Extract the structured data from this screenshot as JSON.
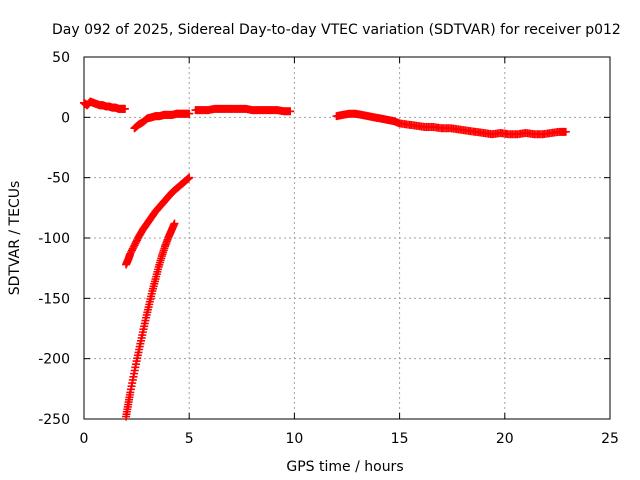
{
  "chart_data": {
    "type": "scatter",
    "title": "Day 092 of 2025, Sidereal Day-to-day VTEC variation (SDTVAR) for receiver p012",
    "xlabel": "GPS time / hours",
    "ylabel": "SDTVAR / TECUs",
    "xlim": [
      0,
      25
    ],
    "ylim": [
      -250,
      50
    ],
    "xticks": [
      0,
      5,
      10,
      15,
      20,
      25
    ],
    "yticks": [
      50,
      0,
      -50,
      -100,
      -150,
      -200,
      -250
    ],
    "grid": true,
    "marker": "plus",
    "color": "#ff0000",
    "series": [
      {
        "name": "arc-1",
        "x": [
          0.0,
          0.15,
          0.3,
          0.45,
          0.6,
          0.75,
          0.9,
          1.05,
          1.2,
          1.35,
          1.5,
          1.65,
          1.8,
          1.95
        ],
        "y": [
          12,
          10,
          13,
          12,
          11,
          10,
          10,
          9,
          9,
          8,
          8,
          7,
          7,
          7
        ]
      },
      {
        "name": "arc-2",
        "x": [
          2.4,
          2.6,
          2.8,
          3.0,
          3.2,
          3.4,
          3.6,
          3.8,
          4.0,
          4.2,
          4.4,
          4.6,
          4.8,
          5.0
        ],
        "y": [
          -9,
          -6,
          -4,
          -1,
          0,
          1,
          1,
          2,
          2,
          2,
          3,
          3,
          3,
          3
        ]
      },
      {
        "name": "arc-3",
        "x": [
          5.3,
          5.6,
          5.9,
          6.2,
          6.5,
          6.8,
          7.1,
          7.4,
          7.7,
          8.0,
          8.3,
          8.6,
          8.9,
          9.2,
          9.5,
          9.8
        ],
        "y": [
          6,
          6,
          6,
          7,
          7,
          7,
          7,
          7,
          7,
          6,
          6,
          6,
          6,
          6,
          5,
          5
        ]
      },
      {
        "name": "arc-4",
        "x": [
          12.0,
          12.3,
          12.6,
          12.9,
          13.2,
          13.5,
          13.8,
          14.1,
          14.4,
          14.7,
          15.0,
          15.4,
          15.8,
          16.2,
          16.6,
          17.0,
          17.4,
          17.8,
          18.2,
          18.6,
          19.0,
          19.4,
          19.8,
          20.2,
          20.6,
          21.0,
          21.4,
          21.8,
          22.2,
          22.6,
          22.9
        ],
        "y": [
          1,
          2,
          3,
          3,
          2,
          1,
          0,
          -1,
          -2,
          -3,
          -5,
          -6,
          -7,
          -8,
          -8,
          -9,
          -9,
          -10,
          -11,
          -12,
          -13,
          -14,
          -13,
          -14,
          -14,
          -13,
          -14,
          -14,
          -13,
          -12,
          -12
        ]
      },
      {
        "name": "arc-5",
        "x": [
          2.0,
          2.1,
          2.2,
          2.4,
          2.6,
          2.8,
          3.0,
          3.2,
          3.4,
          3.6,
          3.8,
          4.0,
          4.2,
          4.4,
          4.6,
          4.8,
          5.0
        ],
        "y": [
          -122,
          -118,
          -113,
          -106,
          -99,
          -93,
          -88,
          -83,
          -78,
          -74,
          -70,
          -66,
          -62,
          -59,
          -56,
          -53,
          -50
        ]
      },
      {
        "name": "arc-6",
        "x": [
          2.0,
          2.1,
          2.2,
          2.35,
          2.5,
          2.65,
          2.8,
          2.95,
          3.1,
          3.25,
          3.4,
          3.55,
          3.7,
          3.85,
          4.0,
          4.15,
          4.3
        ],
        "y": [
          -248,
          -238,
          -228,
          -215,
          -202,
          -190,
          -178,
          -166,
          -155,
          -144,
          -134,
          -124,
          -115,
          -107,
          -100,
          -94,
          -88
        ]
      }
    ]
  }
}
